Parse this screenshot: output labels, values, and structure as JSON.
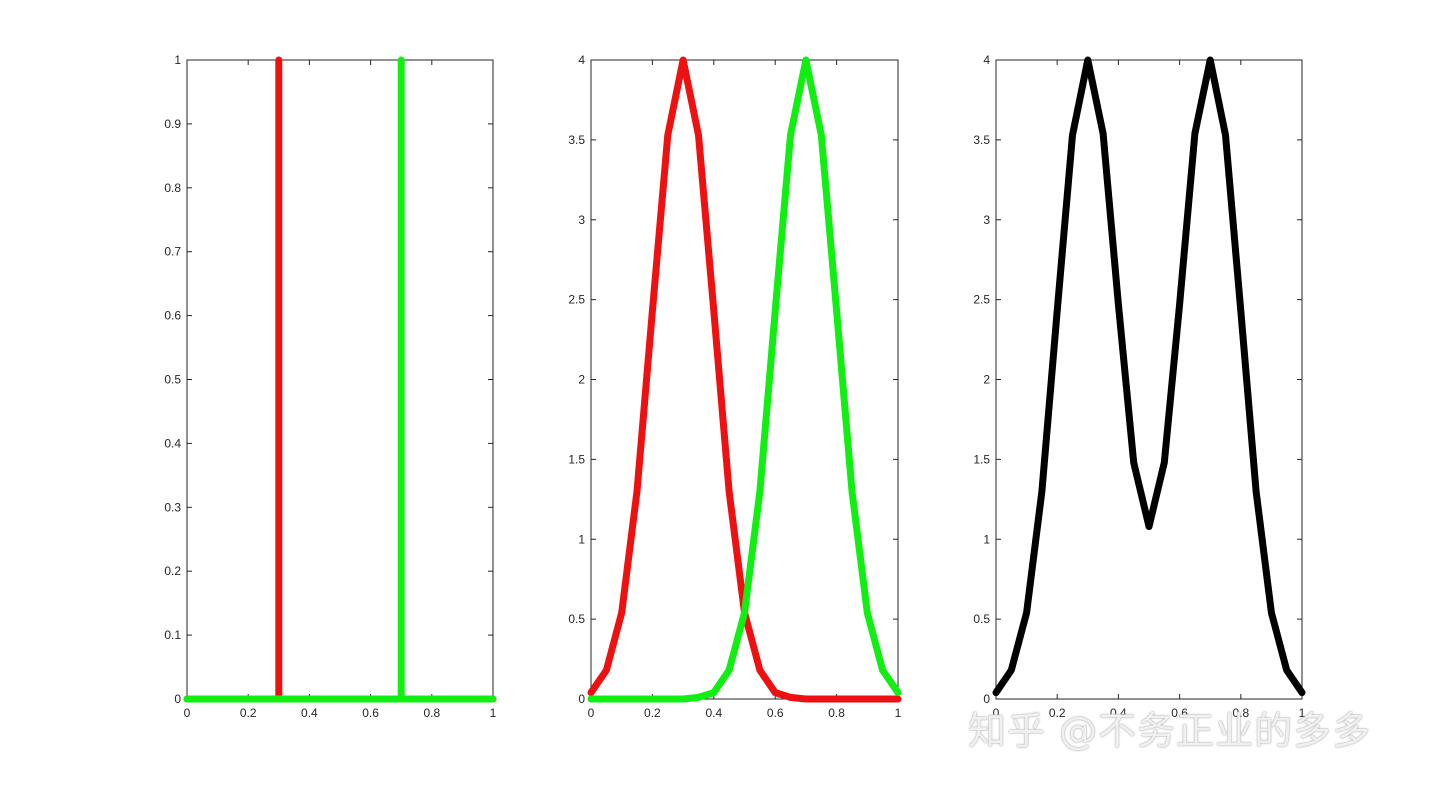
{
  "chart_data": [
    {
      "type": "line",
      "title": "",
      "xlabel": "",
      "ylabel": "",
      "xlim": [
        0,
        1
      ],
      "ylim": [
        0,
        1
      ],
      "xticks": [
        "0",
        "0.2",
        "0.4",
        "0.6",
        "0.8",
        "1"
      ],
      "yticks": [
        "0",
        "0.1",
        "0.2",
        "0.3",
        "0.4",
        "0.5",
        "0.6",
        "0.7",
        "0.8",
        "0.9",
        "1"
      ],
      "grid": false,
      "series": [
        {
          "color": "#ee1111",
          "x": [
            0,
            0.3,
            0.3,
            0.3,
            1
          ],
          "y": [
            0,
            0,
            1,
            0,
            0
          ]
        },
        {
          "color": "#11ee11",
          "x": [
            0,
            0.7,
            0.7,
            0.7,
            1
          ],
          "y": [
            0,
            0,
            1,
            0,
            0
          ]
        }
      ]
    },
    {
      "type": "line",
      "title": "",
      "xlabel": "",
      "ylabel": "",
      "xlim": [
        0,
        1
      ],
      "ylim": [
        0,
        4
      ],
      "xticks": [
        "0",
        "0.2",
        "0.4",
        "0.6",
        "0.8",
        "1"
      ],
      "yticks": [
        "0",
        "0.5",
        "1",
        "1.5",
        "2",
        "2.5",
        "3",
        "3.5",
        "4"
      ],
      "grid": false,
      "series": [
        {
          "color": "#ee1111",
          "x": [
            0,
            0.05,
            0.1,
            0.15,
            0.2,
            0.25,
            0.3,
            0.35,
            0.4,
            0.45,
            0.5,
            0.55,
            0.6,
            0.65,
            0.7,
            0.8,
            0.9,
            1
          ],
          "y": [
            0.04,
            0.18,
            0.54,
            1.3,
            2.43,
            3.53,
            4,
            3.53,
            2.43,
            1.3,
            0.54,
            0.18,
            0.04,
            0.01,
            0,
            0,
            0,
            0
          ]
        },
        {
          "color": "#11ee11",
          "x": [
            0,
            0.1,
            0.2,
            0.3,
            0.35,
            0.4,
            0.45,
            0.5,
            0.55,
            0.6,
            0.65,
            0.7,
            0.75,
            0.8,
            0.85,
            0.9,
            0.95,
            1
          ],
          "y": [
            0,
            0,
            0,
            0,
            0.01,
            0.04,
            0.18,
            0.54,
            1.3,
            2.43,
            3.53,
            4,
            3.53,
            2.43,
            1.3,
            0.54,
            0.18,
            0.04
          ]
        }
      ]
    },
    {
      "type": "line",
      "title": "",
      "xlabel": "",
      "ylabel": "",
      "xlim": [
        0,
        1
      ],
      "ylim": [
        0,
        4
      ],
      "xticks": [
        "0",
        "0.2",
        "0.4",
        "0.6",
        "0.8",
        "1"
      ],
      "yticks": [
        "0",
        "0.5",
        "1",
        "1.5",
        "2",
        "2.5",
        "3",
        "3.5",
        "4"
      ],
      "grid": false,
      "series": [
        {
          "color": "#000000",
          "x": [
            0,
            0.05,
            0.1,
            0.15,
            0.2,
            0.25,
            0.3,
            0.35,
            0.4,
            0.45,
            0.5,
            0.55,
            0.6,
            0.65,
            0.7,
            0.75,
            0.8,
            0.85,
            0.9,
            0.95,
            1
          ],
          "y": [
            0.04,
            0.18,
            0.54,
            1.3,
            2.43,
            3.53,
            4,
            3.54,
            2.47,
            1.48,
            1.08,
            1.48,
            2.47,
            3.54,
            4,
            3.53,
            2.43,
            1.3,
            0.54,
            0.18,
            0.04
          ]
        }
      ]
    }
  ],
  "watermark": {
    "text": "知乎 @不务正业的多多"
  }
}
